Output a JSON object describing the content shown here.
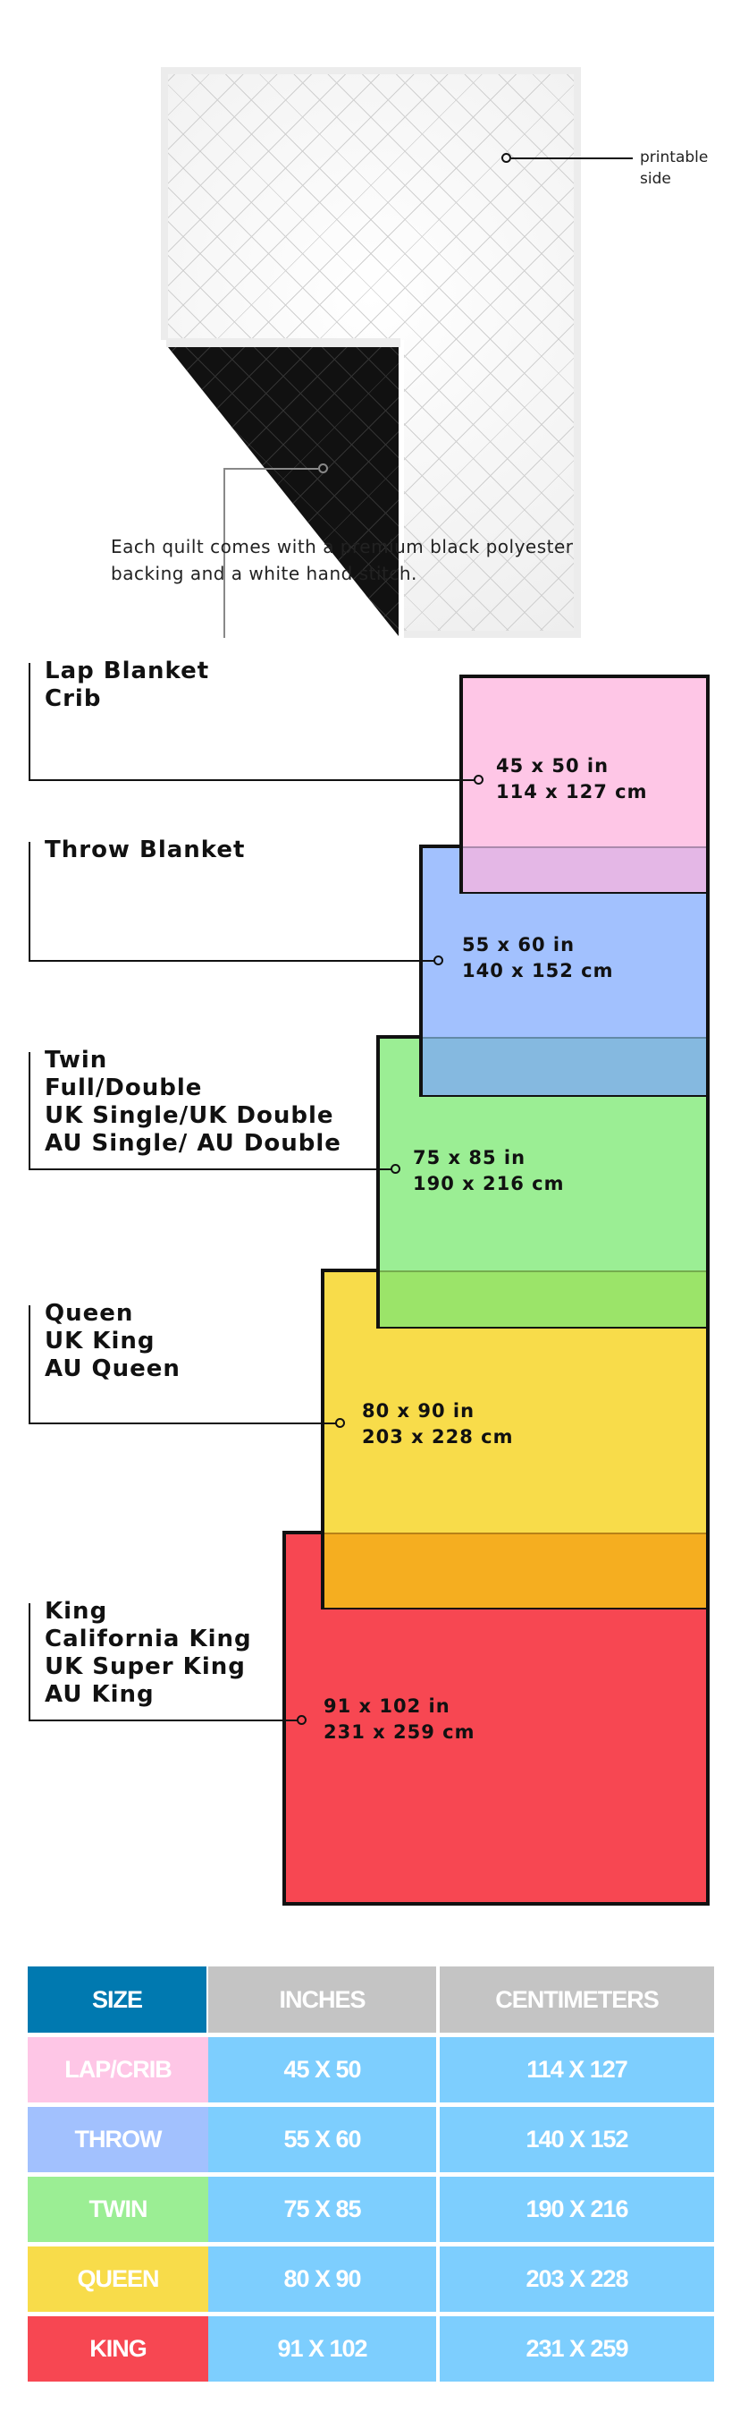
{
  "quilt_diagram": {
    "printable_label": "printable side",
    "printable_label_lines": [
      "printable",
      "side"
    ],
    "caption_lines": [
      "Each quilt comes with a premium black polyester",
      "backing and a white hand stitch."
    ]
  },
  "sizes": [
    {
      "names": [
        "Lap Blanket",
        "Crib"
      ],
      "inches": "45 x 50 in",
      "cm": "114 x 127 cm",
      "color": "#fec6e6"
    },
    {
      "names": [
        "Throw Blanket"
      ],
      "inches": "55 x 60 in",
      "cm": "140 x 152 cm",
      "color": "#a2c1fe"
    },
    {
      "names": [
        "Twin",
        "Full/Double",
        "UK Single/UK Double",
        "AU Single/ AU Double"
      ],
      "inches": "75 x 85 in",
      "cm": "190 x 216 cm",
      "color": "#9bee94"
    },
    {
      "names": [
        "Queen",
        "UK King",
        "AU Queen"
      ],
      "inches": "80 x 90 in",
      "cm": "203 x 228 cm",
      "color": "#f8dc4a"
    },
    {
      "names": [
        "King",
        "California King",
        "UK Super King",
        "AU King"
      ],
      "inches": "91 x 102 in",
      "cm": "231 x 259 cm",
      "color": "#f74752"
    }
  ],
  "table": {
    "headers": [
      "SIZE",
      "INCHES",
      "CENTIMETERS"
    ],
    "header_colors": {
      "size": "#0079b0",
      "other": "#c4c4c4"
    },
    "cell_color": "#7dcefe",
    "rows": [
      {
        "size": "LAP/CRIB",
        "inches": "45 X 50",
        "cm": "114 X 127",
        "color": "#fec6e6"
      },
      {
        "size": "THROW",
        "inches": "55 X 60",
        "cm": "140 X 152",
        "color": "#a2c1fe"
      },
      {
        "size": "TWIN",
        "inches": "75 X 85",
        "cm": "190 X 216",
        "color": "#9bee94"
      },
      {
        "size": "QUEEN",
        "inches": "80 X 90",
        "cm": "203 X 228",
        "color": "#f8dc4a"
      },
      {
        "size": "KING",
        "inches": "91 X 102",
        "cm": "231 X 259",
        "color": "#f74752"
      }
    ]
  }
}
